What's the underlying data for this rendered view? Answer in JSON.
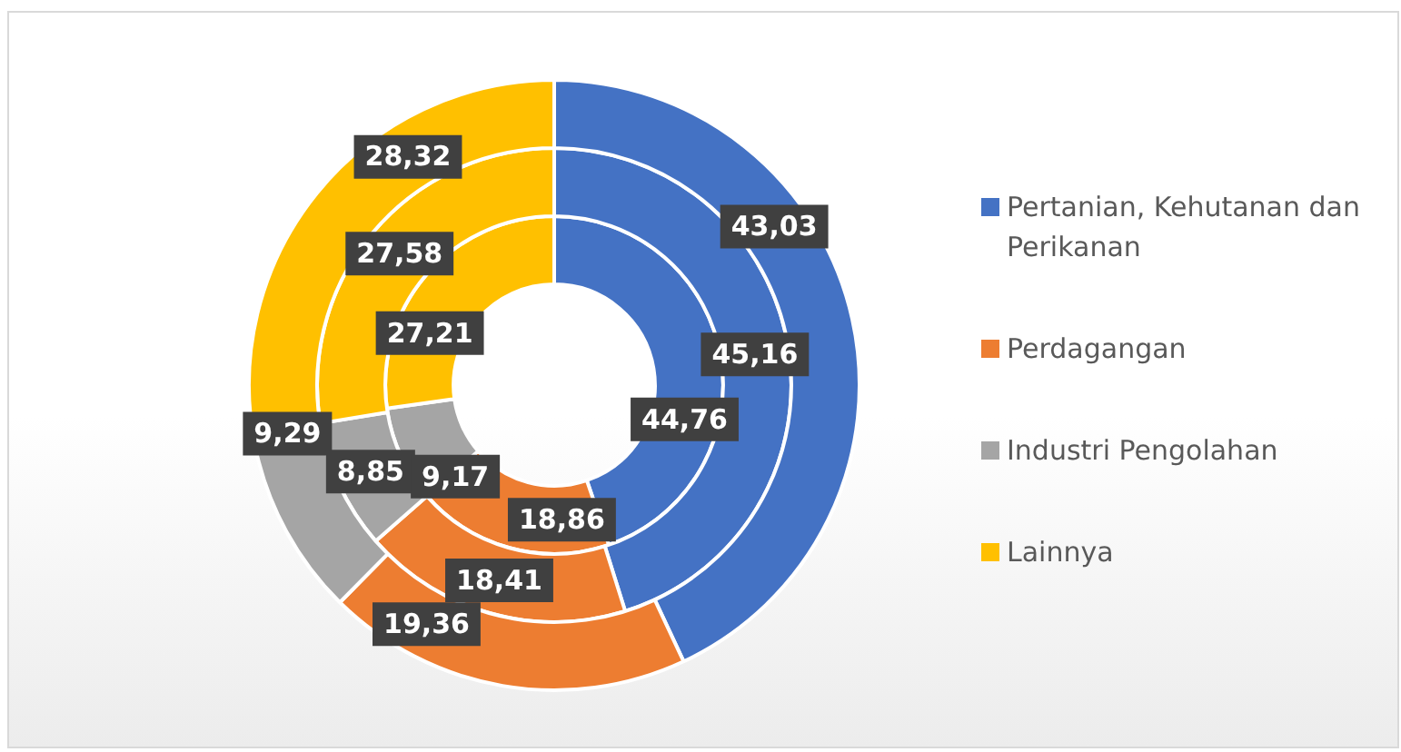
{
  "chart_data": {
    "type": "donut",
    "categories": [
      "Pertanian, Kehutanan dan Perikanan",
      "Perdagangan",
      "Industri Pengolahan",
      "Lainnya"
    ],
    "colors": [
      "#4472c4",
      "#ed7d31",
      "#a5a5a5",
      "#ffc000"
    ],
    "series": [
      {
        "values": [
          43.03,
          19.36,
          9.29,
          28.32
        ],
        "value_labels": [
          "43,03",
          "19,36",
          "9,29",
          "28,32"
        ]
      },
      {
        "values": [
          45.16,
          18.41,
          8.85,
          27.58
        ],
        "value_labels": [
          "45,16",
          "18,41",
          "8,85",
          "27,58"
        ]
      },
      {
        "values": [
          44.76,
          18.86,
          9.17,
          27.21
        ],
        "value_labels": [
          "44,76",
          "18,86",
          "9,17",
          "27,21"
        ]
      }
    ],
    "legend": "right"
  }
}
